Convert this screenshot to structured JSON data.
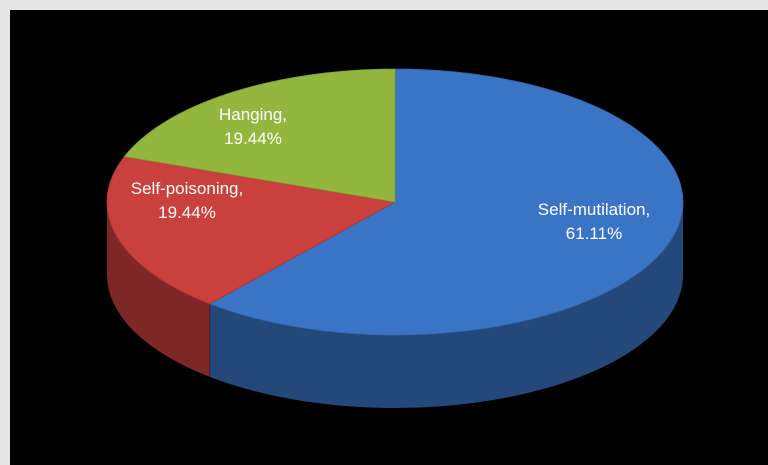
{
  "chart_data": {
    "type": "pie",
    "style": "3d",
    "title": "",
    "legend": "none",
    "slices": [
      {
        "category": "Self-mutilation",
        "value": 61.11,
        "label_line1": "Self-mutilation,",
        "label_line2": "61.11%",
        "color": "#3a74c4"
      },
      {
        "category": "Self-poisoning",
        "value": 19.44,
        "label_line1": "Self-poisoning,",
        "label_line2": "19.44%",
        "color": "#c9403d"
      },
      {
        "category": "Hanging",
        "value": 19.44,
        "label_line1": "Hanging,",
        "label_line2": "19.44%",
        "color": "#93b63e"
      }
    ]
  }
}
